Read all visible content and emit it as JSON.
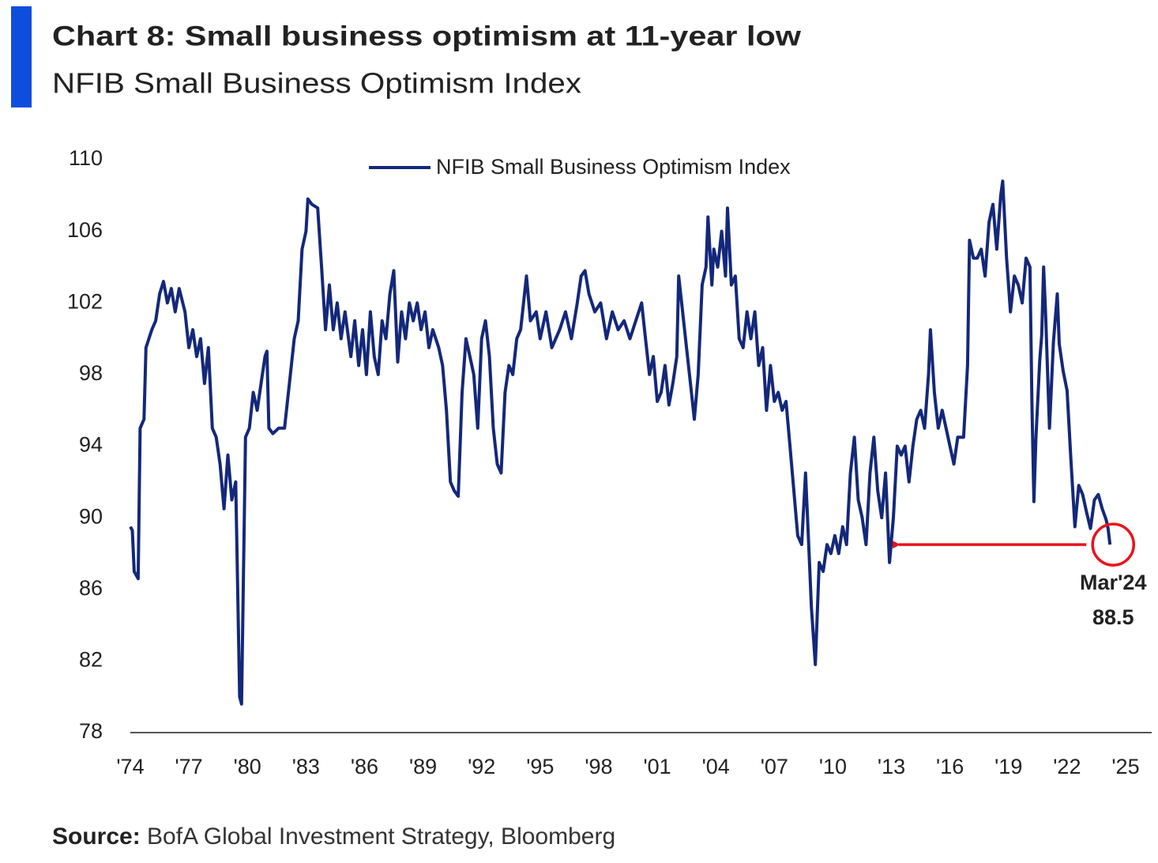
{
  "chart_data": {
    "type": "line",
    "title": "Chart 8: Small business optimism at 11-year low",
    "subtitle": "NFIB Small Business Optimism Index",
    "source_label": "Source:",
    "source": "BofA Global Investment Strategy, Bloomberg",
    "legend": "top",
    "x": [
      1974.0,
      1974.1,
      1974.2,
      1974.4,
      1974.5,
      1974.7,
      1974.8,
      1975.1,
      1975.3,
      1975.5,
      1975.7,
      1975.9,
      1976.1,
      1976.3,
      1976.5,
      1976.8,
      1977.0,
      1977.2,
      1977.4,
      1977.6,
      1977.8,
      1978.0,
      1978.2,
      1978.4,
      1978.6,
      1978.8,
      1979.0,
      1979.2,
      1979.4,
      1979.6,
      1979.7,
      1979.9,
      1980.1,
      1980.3,
      1980.5,
      1980.7,
      1980.9,
      1981.0,
      1981.1,
      1981.3,
      1981.6,
      1981.9,
      1982.2,
      1982.4,
      1982.6,
      1982.8,
      1983.0,
      1983.1,
      1983.3,
      1983.6,
      1983.8,
      1984.0,
      1984.2,
      1984.4,
      1984.6,
      1984.8,
      1985.0,
      1985.3,
      1985.5,
      1985.7,
      1985.9,
      1986.1,
      1986.3,
      1986.5,
      1986.7,
      1986.9,
      1987.1,
      1987.3,
      1987.5,
      1987.7,
      1987.9,
      1988.1,
      1988.3,
      1988.5,
      1988.7,
      1988.9,
      1989.1,
      1989.3,
      1989.5,
      1989.8,
      1990.0,
      1990.2,
      1990.4,
      1990.6,
      1990.8,
      1991.0,
      1991.2,
      1991.4,
      1991.6,
      1991.8,
      1992.0,
      1992.2,
      1992.4,
      1992.6,
      1992.8,
      1993.0,
      1993.2,
      1993.4,
      1993.6,
      1993.8,
      1994.0,
      1994.3,
      1994.5,
      1994.8,
      1995.0,
      1995.3,
      1995.6,
      1996.0,
      1996.3,
      1996.6,
      1996.9,
      1997.1,
      1997.3,
      1997.5,
      1997.8,
      1998.1,
      1998.4,
      1998.7,
      1999.0,
      1999.3,
      1999.6,
      1999.9,
      2000.2,
      2000.4,
      2000.6,
      2000.8,
      2001.0,
      2001.2,
      2001.4,
      2001.6,
      2001.8,
      2002.0,
      2002.1,
      2002.3,
      2002.5,
      2002.7,
      2002.9,
      2003.1,
      2003.3,
      2003.5,
      2003.6,
      2003.8,
      2003.9,
      2004.1,
      2004.3,
      2004.5,
      2004.6,
      2004.8,
      2005.0,
      2005.2,
      2005.4,
      2005.6,
      2005.8,
      2006.0,
      2006.2,
      2006.4,
      2006.6,
      2006.8,
      2007.0,
      2007.2,
      2007.4,
      2007.6,
      2007.8,
      2008.0,
      2008.2,
      2008.4,
      2008.6,
      2008.8,
      2008.9,
      2009.1,
      2009.3,
      2009.5,
      2009.7,
      2009.9,
      2010.1,
      2010.3,
      2010.5,
      2010.7,
      2010.9,
      2011.1,
      2011.3,
      2011.5,
      2011.7,
      2011.9,
      2012.1,
      2012.3,
      2012.5,
      2012.7,
      2012.9,
      2013.1,
      2013.3,
      2013.5,
      2013.7,
      2013.9,
      2014.1,
      2014.3,
      2014.5,
      2014.7,
      2014.9,
      2015.0,
      2015.2,
      2015.4,
      2015.6,
      2015.8,
      2016.0,
      2016.2,
      2016.4,
      2016.7,
      2016.9,
      2017.0,
      2017.2,
      2017.4,
      2017.6,
      2017.8,
      2018.0,
      2018.2,
      2018.4,
      2018.6,
      2018.7,
      2018.9,
      2019.1,
      2019.3,
      2019.5,
      2019.7,
      2019.9,
      2020.1,
      2020.2,
      2020.3,
      2020.4,
      2020.6,
      2020.7,
      2020.8,
      2020.9,
      2021.1,
      2021.3,
      2021.5,
      2021.6,
      2021.8,
      2022.0,
      2022.2,
      2022.4,
      2022.6,
      2022.8,
      2023.0,
      2023.2,
      2023.4,
      2023.6,
      2023.8,
      2024.0,
      2024.1,
      2024.2
    ],
    "series": [
      {
        "name": "NFIB Small Business Optimism Index",
        "color": "#14287a",
        "values": [
          89.5,
          89.3,
          87,
          86.6,
          95,
          95.5,
          99.5,
          100.5,
          101,
          102.5,
          103.2,
          102,
          102.8,
          101.5,
          102.8,
          101.5,
          99.5,
          100.5,
          99,
          100,
          97.5,
          99.5,
          95,
          94.5,
          93,
          90.5,
          93.5,
          91,
          92,
          80,
          79.6,
          94.5,
          95,
          97,
          96,
          97.5,
          99,
          99.3,
          95,
          94.7,
          95,
          95,
          98,
          100,
          101,
          105,
          106,
          107.8,
          107.5,
          107.3,
          104,
          100.5,
          103,
          100.5,
          102,
          100,
          101.5,
          99,
          101,
          98.5,
          100.5,
          98,
          101.5,
          99,
          98,
          101,
          100,
          102.5,
          103.8,
          98.7,
          101.5,
          100,
          102,
          101,
          102,
          100.5,
          101.5,
          99.5,
          100.5,
          99.5,
          98.5,
          96,
          92,
          91.5,
          91.2,
          97,
          100,
          99,
          98,
          95,
          100,
          101,
          99,
          95,
          93,
          92.5,
          97,
          98.5,
          98,
          100,
          100.5,
          103.5,
          101,
          101.5,
          100,
          101.5,
          99.5,
          100.5,
          101.5,
          100,
          102,
          103.5,
          103.8,
          102.5,
          101.5,
          102,
          100,
          101.5,
          100.5,
          101,
          100,
          101,
          102,
          100,
          98,
          99,
          96.5,
          97,
          98.5,
          96.3,
          97.5,
          99,
          103.5,
          101.5,
          99.5,
          97.5,
          95.5,
          98,
          103,
          104,
          106.8,
          103,
          105,
          104,
          106,
          103.5,
          107.3,
          103,
          103.5,
          100,
          99.5,
          101.5,
          100,
          101.5,
          98.5,
          99.5,
          96,
          98.5,
          96.5,
          97,
          96,
          96.5,
          94,
          91.5,
          89,
          88.5,
          92.5,
          87.5,
          85,
          81.8,
          87.5,
          87,
          88.5,
          88,
          89,
          88,
          89.5,
          88.5,
          92.5,
          94.5,
          91,
          90,
          88.5,
          92.5,
          94.5,
          91.5,
          90,
          92.5,
          87.5,
          90,
          94,
          93.5,
          94,
          92,
          94,
          95.5,
          96,
          95,
          98,
          100.5,
          97,
          95,
          96,
          95,
          94,
          93,
          94.5,
          94.5,
          98.5,
          105.5,
          104.5,
          104.5,
          105,
          103.5,
          106.5,
          107.5,
          105,
          108,
          108.8,
          104.5,
          101.5,
          103.5,
          103,
          102,
          104.5,
          104,
          96.4,
          90.9,
          94.4,
          98.8,
          100.2,
          104,
          101.4,
          95,
          99.8,
          102.5,
          99.7,
          98.2,
          97.1,
          93.2,
          89.5,
          91.8,
          91.3,
          90.3,
          89.4,
          91,
          91.3,
          90.5,
          89.9,
          89.4,
          88.5
        ]
      }
    ],
    "xlim": [
      1974,
      2025
    ],
    "xticks": [
      {
        "value": 1974,
        "label": "'74"
      },
      {
        "value": 1977,
        "label": "'77"
      },
      {
        "value": 1980,
        "label": "'80"
      },
      {
        "value": 1983,
        "label": "'83"
      },
      {
        "value": 1986,
        "label": "'86"
      },
      {
        "value": 1989,
        "label": "'89"
      },
      {
        "value": 1992,
        "label": "'92"
      },
      {
        "value": 1995,
        "label": "'95"
      },
      {
        "value": 1998,
        "label": "'98"
      },
      {
        "value": 2001,
        "label": "'01"
      },
      {
        "value": 2004,
        "label": "'04"
      },
      {
        "value": 2007,
        "label": "'07"
      },
      {
        "value": 2010,
        "label": "'10"
      },
      {
        "value": 2013,
        "label": "'13"
      },
      {
        "value": 2016,
        "label": "'16"
      },
      {
        "value": 2019,
        "label": "'19"
      },
      {
        "value": 2022,
        "label": "'22"
      },
      {
        "value": 2025,
        "label": "'25"
      }
    ],
    "ylim": [
      78,
      110
    ],
    "yticks": [
      78,
      82,
      86,
      90,
      94,
      98,
      102,
      106,
      110
    ],
    "grid": false,
    "annotation": {
      "label": "Mar'24",
      "value": 88.5,
      "color": "#e8131b"
    }
  }
}
